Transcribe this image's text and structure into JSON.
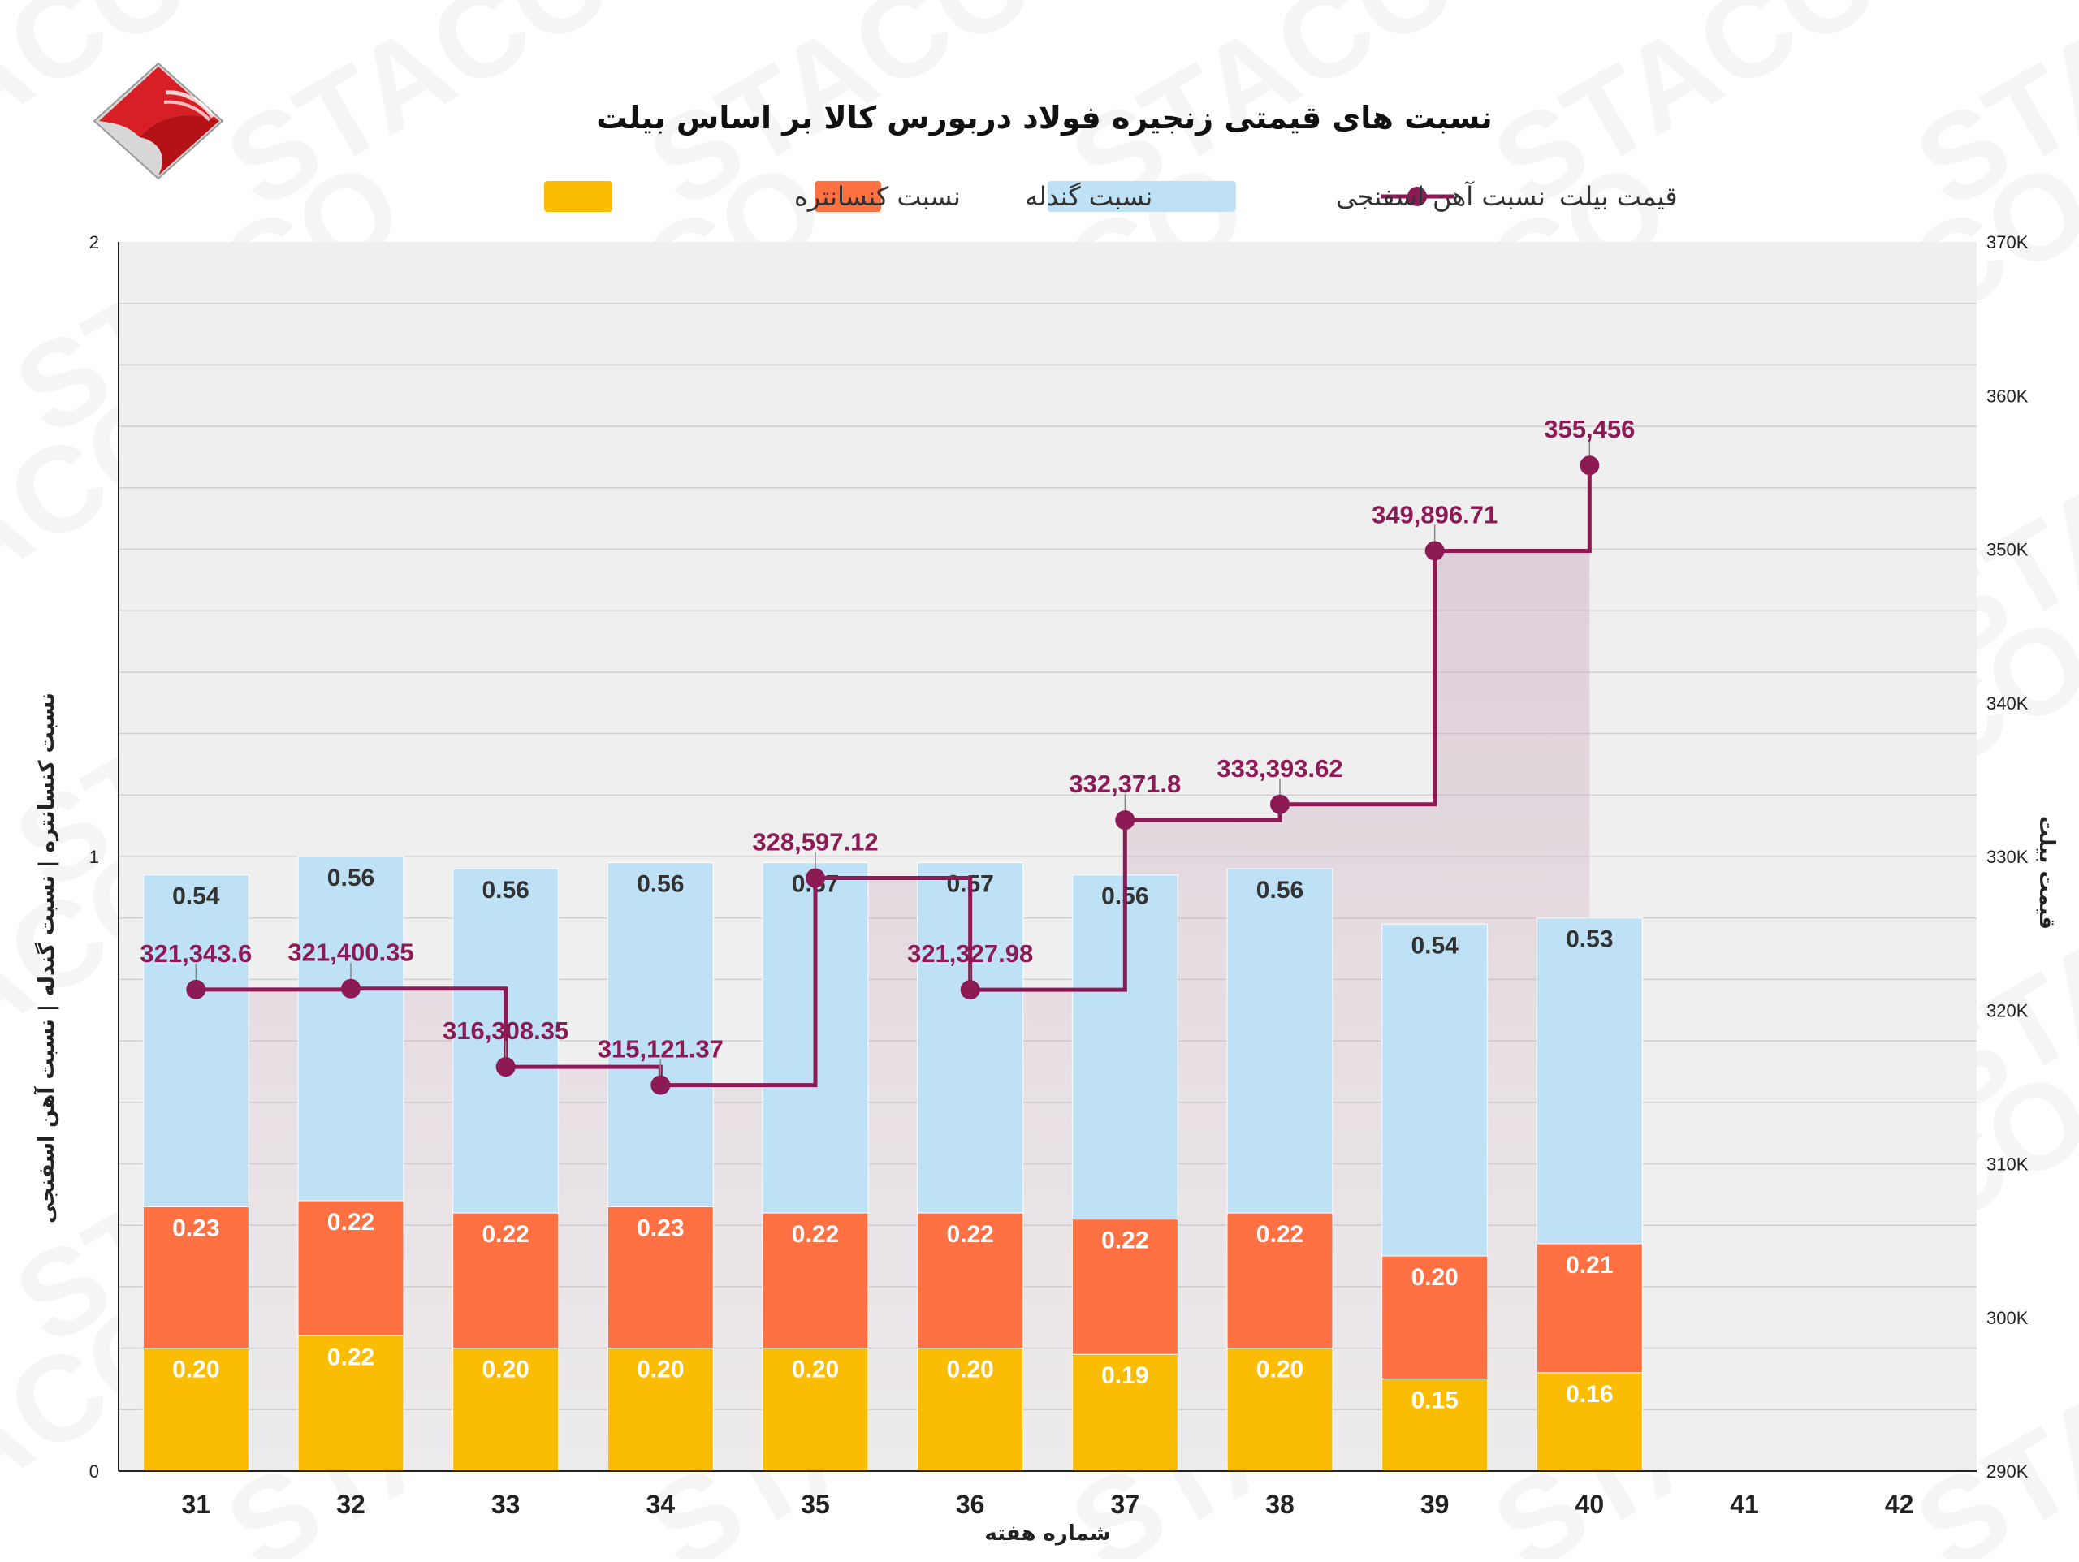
{
  "chart_data": {
    "type": "bar",
    "stacked": true,
    "title": "نسبت های قیمتی زنجیره فولاد دربورس کالا بر اساس بیلت",
    "xlabel": "شماره هفته",
    "ylabel_left": "نسبت کنسانتره | نسبت گندله | نسبت آهن اسفنجی",
    "ylabel_right": "قیمت بیلت",
    "categories": [
      "31",
      "32",
      "33",
      "34",
      "35",
      "36",
      "37",
      "38",
      "39",
      "40",
      "41",
      "42"
    ],
    "ylim_left": [
      0,
      2
    ],
    "yticks_left": [
      "0",
      "1",
      "2"
    ],
    "ylim_right": [
      290000,
      370000
    ],
    "yticks_right": [
      "290K",
      "300K",
      "310K",
      "320K",
      "330K",
      "340K",
      "350K",
      "360K",
      "370K"
    ],
    "grid": true,
    "legend_position": "top",
    "series": [
      {
        "name": "نسبت کنسانتره",
        "kind": "bar",
        "color": "#fbbc04",
        "values": [
          0.2,
          0.22,
          0.2,
          0.2,
          0.2,
          0.2,
          0.19,
          0.2,
          0.15,
          0.16,
          null,
          null
        ],
        "labels": [
          "0.20",
          "0.22",
          "0.20",
          "0.20",
          "0.20",
          "0.20",
          "0.19",
          "0.20",
          "0.15",
          "0.16",
          "",
          ""
        ]
      },
      {
        "name": "نسبت گندله",
        "kind": "bar",
        "color": "#ff7043",
        "values": [
          0.23,
          0.22,
          0.22,
          0.23,
          0.22,
          0.22,
          0.22,
          0.22,
          0.2,
          0.21,
          null,
          null
        ],
        "labels": [
          "0.23",
          "0.22",
          "0.22",
          "0.23",
          "0.22",
          "0.22",
          "0.22",
          "0.22",
          "0.20",
          "0.21",
          "",
          ""
        ]
      },
      {
        "name": "نسبت آهن اسفنجی",
        "kind": "bar",
        "color": "#bfe1f6",
        "values": [
          0.54,
          0.56,
          0.56,
          0.56,
          0.57,
          0.57,
          0.56,
          0.56,
          0.54,
          0.53,
          null,
          null
        ],
        "labels": [
          "0.54",
          "0.56",
          "0.56",
          "0.56",
          "0.57",
          "0.57",
          "0.56",
          "0.56",
          "0.54",
          "0.53",
          "",
          ""
        ]
      },
      {
        "name": "قیمت بیلت",
        "kind": "stepped-line",
        "axis": "right",
        "color": "#8b1a55",
        "values": [
          321343.6,
          321400.35,
          316308.35,
          315121.37,
          328597.12,
          321327.98,
          332371.8,
          333393.62,
          349896.71,
          355456,
          null,
          null
        ],
        "labels": [
          "321,343.6",
          "321,400.35",
          "316,308.35",
          "315,121.37",
          "328,597.12",
          "321,327.98",
          "332,371.8",
          "333,393.62",
          "349,896.71",
          "355,456",
          "",
          ""
        ]
      }
    ]
  },
  "watermark": "STACO",
  "colors": {
    "plot_bg": "#efefef",
    "grid": "#d0d0d0",
    "area": "#c7a2b8"
  }
}
